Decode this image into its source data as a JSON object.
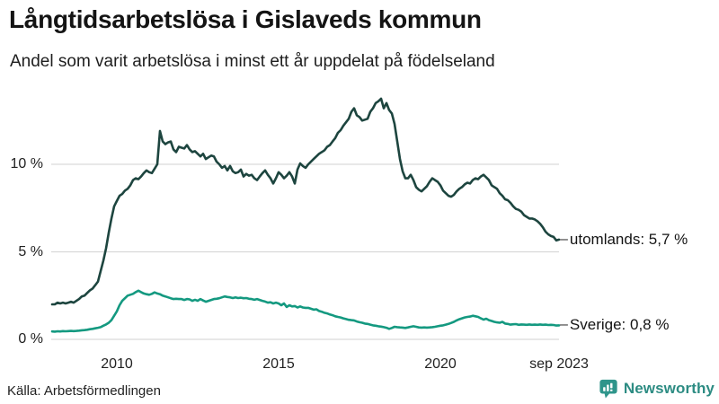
{
  "header": {
    "title": "Långtidsarbetslösa i Gislaveds kommun",
    "subtitle": "Andel som varit arbetslösa i minst ett år uppdelat på födelseland"
  },
  "footer": {
    "source": "Källa: Arbetsförmedlingen",
    "brand": "Newsworthy"
  },
  "colors": {
    "grid": "#d9d9d9",
    "utomlands_line": "#1d453f",
    "sverige_line": "#149980",
    "brand_teal": "#2f958b",
    "text": "#1a1a1a"
  },
  "chart_data": {
    "type": "line",
    "title": "Långtidsarbetslösa i Gislaveds kommun",
    "subtitle": "Andel som varit arbetslösa i minst ett år uppdelat på födelseland",
    "unit": "%",
    "frequency": "monthly",
    "x_start": "2008-01",
    "x_end": "2023-09",
    "ylim": [
      0,
      14
    ],
    "grid": true,
    "legend_position": "end-of-line",
    "connector": "–",
    "y_ticks": [
      {
        "label": "0 %",
        "value": 0
      },
      {
        "label": "5 %",
        "value": 5
      },
      {
        "label": "10 %",
        "value": 10
      }
    ],
    "x_ticks": [
      {
        "label": "2010",
        "month": 24
      },
      {
        "label": "2015",
        "month": 84
      },
      {
        "label": "2020",
        "month": 144
      },
      {
        "label": "sep 2023",
        "month": 188
      }
    ],
    "series": [
      {
        "name": "utomlands",
        "end_label": "utomlands: 5,7 %",
        "end_value": 5.7,
        "color": "#1d453f",
        "values": [
          2.0,
          2.0,
          2.1,
          2.05,
          2.1,
          2.05,
          2.1,
          2.15,
          2.1,
          2.2,
          2.3,
          2.45,
          2.5,
          2.65,
          2.8,
          2.9,
          3.1,
          3.3,
          3.9,
          4.5,
          5.2,
          6.1,
          6.9,
          7.6,
          7.9,
          8.2,
          8.3,
          8.5,
          8.6,
          8.8,
          9.1,
          9.2,
          9.15,
          9.3,
          9.5,
          9.65,
          9.55,
          9.5,
          9.75,
          10.0,
          11.9,
          11.3,
          11.15,
          11.25,
          11.3,
          10.85,
          10.7,
          11.0,
          10.95,
          10.9,
          11.1,
          10.85,
          10.7,
          10.75,
          10.6,
          10.45,
          10.6,
          10.3,
          10.4,
          10.5,
          10.45,
          10.15,
          10.0,
          9.8,
          9.9,
          9.65,
          9.9,
          9.6,
          9.5,
          9.55,
          9.7,
          9.3,
          9.45,
          9.35,
          9.4,
          9.2,
          9.1,
          9.3,
          9.5,
          9.65,
          9.4,
          9.2,
          8.9,
          9.2,
          9.55,
          9.4,
          9.2,
          9.35,
          9.55,
          9.3,
          8.9,
          9.7,
          10.05,
          9.9,
          9.8,
          10.0,
          10.15,
          10.3,
          10.45,
          10.6,
          10.7,
          10.8,
          11.0,
          11.1,
          11.3,
          11.5,
          11.8,
          11.95,
          12.2,
          12.4,
          12.6,
          13.0,
          13.2,
          12.8,
          12.7,
          12.5,
          12.55,
          12.6,
          13.0,
          13.2,
          13.5,
          13.6,
          13.75,
          13.2,
          13.5,
          13.1,
          12.9,
          12.3,
          11.3,
          10.3,
          9.6,
          9.2,
          9.2,
          9.4,
          9.1,
          8.7,
          8.55,
          8.45,
          8.6,
          8.75,
          9.0,
          9.2,
          9.1,
          9.0,
          8.8,
          8.5,
          8.35,
          8.2,
          8.15,
          8.25,
          8.45,
          8.6,
          8.7,
          8.85,
          8.95,
          8.9,
          9.1,
          9.2,
          9.15,
          9.3,
          9.4,
          9.25,
          9.1,
          8.8,
          8.7,
          8.6,
          8.35,
          8.2,
          8.0,
          7.95,
          7.8,
          7.6,
          7.45,
          7.4,
          7.3,
          7.1,
          7.0,
          6.9,
          6.9,
          6.85,
          6.75,
          6.6,
          6.4,
          6.15,
          6.0,
          5.9,
          5.85,
          5.65,
          5.7
        ]
      },
      {
        "name": "Sverige",
        "end_label": "Sverige: 0,8 %",
        "end_value": 0.8,
        "color": "#149980",
        "values": [
          0.45,
          0.44,
          0.46,
          0.45,
          0.47,
          0.46,
          0.47,
          0.48,
          0.47,
          0.48,
          0.5,
          0.52,
          0.53,
          0.55,
          0.58,
          0.6,
          0.63,
          0.66,
          0.7,
          0.78,
          0.85,
          0.95,
          1.1,
          1.35,
          1.6,
          1.95,
          2.2,
          2.35,
          2.5,
          2.55,
          2.6,
          2.7,
          2.78,
          2.7,
          2.62,
          2.58,
          2.55,
          2.6,
          2.68,
          2.62,
          2.58,
          2.5,
          2.45,
          2.4,
          2.35,
          2.3,
          2.32,
          2.3,
          2.3,
          2.25,
          2.3,
          2.28,
          2.2,
          2.26,
          2.2,
          2.3,
          2.22,
          2.15,
          2.2,
          2.25,
          2.3,
          2.32,
          2.35,
          2.4,
          2.45,
          2.42,
          2.4,
          2.36,
          2.4,
          2.36,
          2.38,
          2.35,
          2.36,
          2.32,
          2.3,
          2.26,
          2.3,
          2.25,
          2.2,
          2.16,
          2.1,
          2.12,
          2.05,
          2.1,
          2.05,
          1.95,
          2.05,
          1.85,
          1.95,
          1.88,
          1.9,
          1.82,
          1.88,
          1.82,
          1.8,
          1.8,
          1.75,
          1.7,
          1.72,
          1.62,
          1.58,
          1.52,
          1.48,
          1.42,
          1.38,
          1.32,
          1.28,
          1.25,
          1.2,
          1.16,
          1.12,
          1.1,
          1.08,
          1.02,
          0.98,
          0.95,
          0.9,
          0.88,
          0.84,
          0.8,
          0.78,
          0.75,
          0.73,
          0.7,
          0.66,
          0.6,
          0.65,
          0.72,
          0.7,
          0.68,
          0.67,
          0.65,
          0.68,
          0.72,
          0.75,
          0.72,
          0.68,
          0.67,
          0.68,
          0.67,
          0.68,
          0.7,
          0.72,
          0.75,
          0.78,
          0.8,
          0.84,
          0.88,
          0.94,
          1.0,
          1.08,
          1.15,
          1.2,
          1.25,
          1.28,
          1.3,
          1.35,
          1.32,
          1.28,
          1.2,
          1.13,
          1.18,
          1.1,
          1.05,
          1.0,
          0.97,
          0.95,
          1.0,
          0.9,
          0.88,
          0.84,
          0.86,
          0.87,
          0.83,
          0.85,
          0.84,
          0.83,
          0.85,
          0.83,
          0.84,
          0.83,
          0.85,
          0.83,
          0.84,
          0.82,
          0.83,
          0.82,
          0.79,
          0.8
        ]
      }
    ]
  }
}
